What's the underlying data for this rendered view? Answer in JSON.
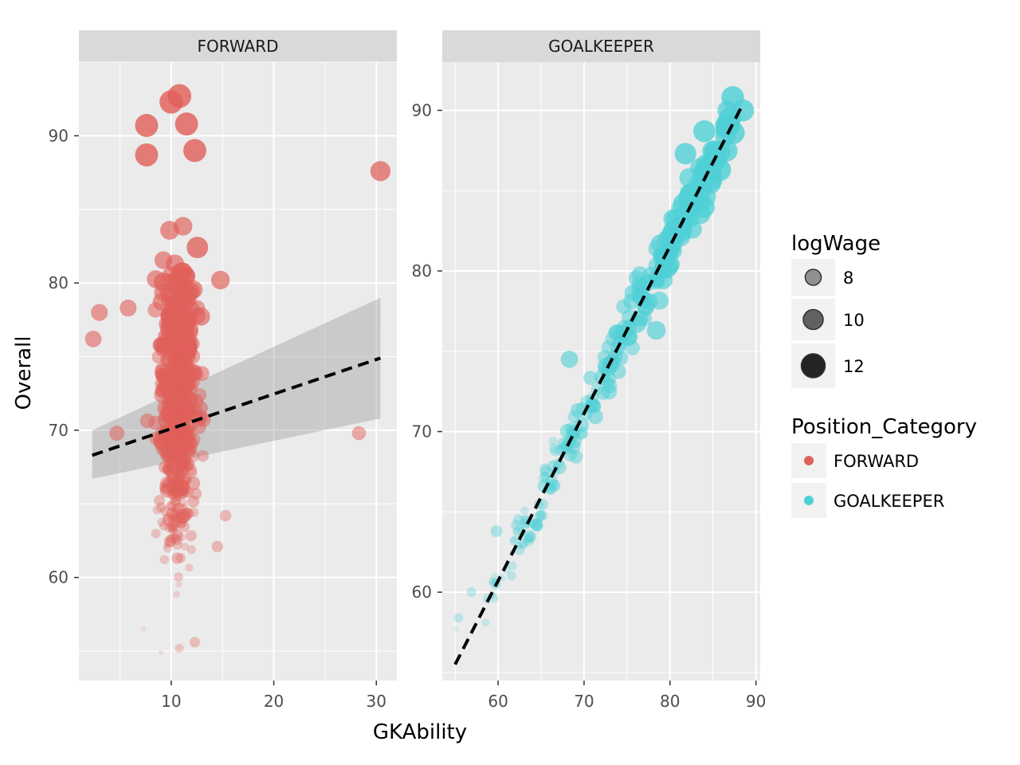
{
  "chart_data": {
    "type": "scatter",
    "xlabel": "GKAbility",
    "ylabel": "Overall",
    "facets": [
      {
        "label": "FORWARD",
        "xlim": [
          1,
          32
        ],
        "ylim": [
          53,
          95
        ],
        "xticks": [
          10,
          20,
          30
        ],
        "yticks": [
          60,
          70,
          80,
          90
        ],
        "color": "#e0605a",
        "trend": {
          "x": [
            2.3,
            30.4
          ],
          "y": [
            68.3,
            74.9
          ]
        },
        "confidence_band": {
          "x": [
            2.3,
            30.4
          ],
          "lower": [
            66.7,
            70.8
          ],
          "upper": [
            70.0,
            79.0
          ]
        },
        "outliers": [
          {
            "x": 2.4,
            "y": 76.2,
            "logWage": 10.2
          },
          {
            "x": 3.0,
            "y": 78.0,
            "logWage": 10.3
          },
          {
            "x": 4.7,
            "y": 69.8,
            "logWage": 9.8
          },
          {
            "x": 5.8,
            "y": 78.3,
            "logWage": 10.3
          },
          {
            "x": 7.6,
            "y": 90.7,
            "logWage": 12.0
          },
          {
            "x": 7.6,
            "y": 88.7,
            "logWage": 12.0
          },
          {
            "x": 10.8,
            "y": 92.7,
            "logWage": 12.2
          },
          {
            "x": 10.0,
            "y": 92.3,
            "logWage": 12.1
          },
          {
            "x": 11.5,
            "y": 90.8,
            "logWage": 12.0
          },
          {
            "x": 12.3,
            "y": 89.0,
            "logWage": 12.0
          },
          {
            "x": 14.8,
            "y": 80.2,
            "logWage": 10.8
          },
          {
            "x": 15.3,
            "y": 64.2,
            "logWage": 8.8
          },
          {
            "x": 14.5,
            "y": 62.1,
            "logWage": 8.8
          },
          {
            "x": 12.3,
            "y": 55.6,
            "logWage": 8.5
          },
          {
            "x": 10.8,
            "y": 55.2,
            "logWage": 8.0
          },
          {
            "x": 9.0,
            "y": 54.9,
            "logWage": 7.0
          },
          {
            "x": 7.3,
            "y": 56.5,
            "logWage": 7.0
          },
          {
            "x": 28.3,
            "y": 69.8,
            "logWage": 9.5
          },
          {
            "x": 30.4,
            "y": 87.6,
            "logWage": 11.2
          }
        ],
        "cluster": {
          "x_center": 10.6,
          "x_spread": 1.6,
          "y_min": 56,
          "y_max": 90,
          "count": 520
        }
      },
      {
        "label": "GOALKEEPER",
        "xlim": [
          53.5,
          90.5
        ],
        "ylim": [
          54.5,
          93
        ],
        "xticks": [
          60,
          70,
          80,
          90
        ],
        "yticks": [
          60,
          70,
          80,
          90
        ],
        "color": "#4fd0d6",
        "trend": {
          "x": [
            55.0,
            88.4
          ],
          "y": [
            55.5,
            90.3
          ]
        },
        "outliers": [
          {
            "x": 55.4,
            "y": 58.4,
            "logWage": 8.2
          },
          {
            "x": 55.1,
            "y": 57.7,
            "logWage": 7.0
          },
          {
            "x": 56.9,
            "y": 60.0,
            "logWage": 8.3
          },
          {
            "x": 59.8,
            "y": 63.8,
            "logWage": 8.9
          },
          {
            "x": 68.3,
            "y": 74.5,
            "logWage": 10.4
          },
          {
            "x": 78.4,
            "y": 76.3,
            "logWage": 10.8
          },
          {
            "x": 87.3,
            "y": 90.8,
            "logWage": 11.9
          },
          {
            "x": 88.5,
            "y": 90.0,
            "logWage": 11.7
          },
          {
            "x": 87.4,
            "y": 88.6,
            "logWage": 11.8
          },
          {
            "x": 84.0,
            "y": 88.7,
            "logWage": 11.7
          },
          {
            "x": 81.8,
            "y": 87.3,
            "logWage": 11.6
          }
        ],
        "cluster": {
          "slope": 1.04,
          "intercept": -1.7,
          "x_min": 58.5,
          "x_max": 87.0,
          "spread": 0.9,
          "count": 230
        }
      }
    ],
    "legends": [
      {
        "title": "logWage",
        "type": "size",
        "entries": [
          {
            "label": "8",
            "value": 8
          },
          {
            "label": "10",
            "value": 10
          },
          {
            "label": "12",
            "value": 12
          }
        ]
      },
      {
        "title": "Position_Category",
        "type": "color",
        "entries": [
          {
            "label": "FORWARD",
            "color": "#e0605a"
          },
          {
            "label": "GOALKEEPER",
            "color": "#4fd0d6"
          }
        ]
      }
    ],
    "legend_position": "right",
    "grid": true
  }
}
